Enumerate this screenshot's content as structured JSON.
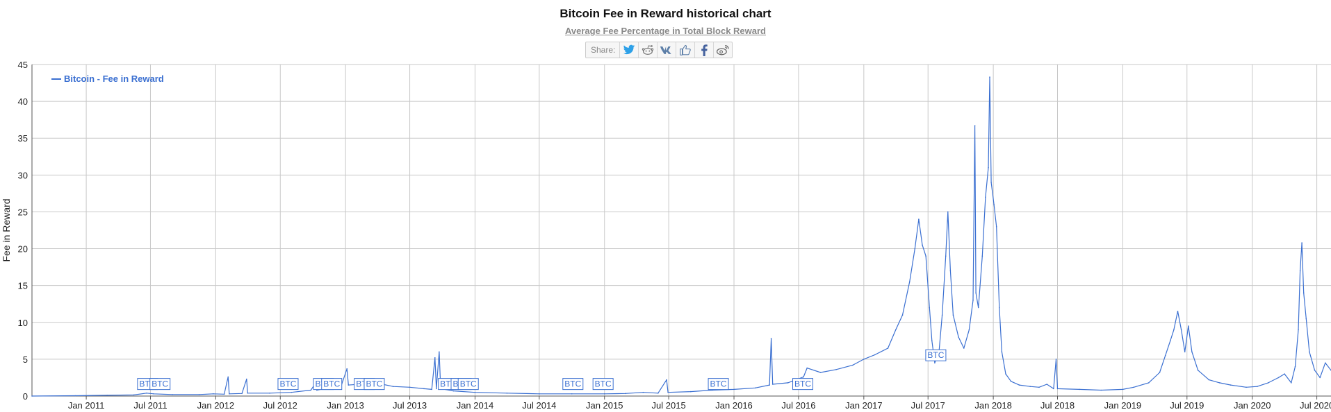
{
  "header": {
    "title": "Bitcoin Fee in Reward historical chart",
    "subtitle": "Average Fee Percentage in Total Block Reward",
    "share_label": "Share:",
    "share_icons": [
      "twitter-icon",
      "reddit-icon",
      "vk-icon",
      "like-icon",
      "facebook-icon",
      "weibo-icon"
    ]
  },
  "colors": {
    "series": "#3a6fd1",
    "grid": "#c8c8c8",
    "axis": "#555555"
  },
  "chart_data": {
    "type": "line",
    "title": "Bitcoin Fee in Reward historical chart",
    "subtitle": "Average Fee Percentage in Total Block Reward",
    "ylabel": "Fee in Reward",
    "xlabel": "",
    "ylim": [
      0,
      45
    ],
    "yticks": [
      0,
      5,
      10,
      15,
      20,
      25,
      30,
      35,
      40,
      45
    ],
    "xlim": [
      "2010-08-01",
      "2020-08-10"
    ],
    "xticks": [
      {
        "date": "2011-01-01",
        "label": "Jan 2011"
      },
      {
        "date": "2011-07-01",
        "label": "Jul 2011"
      },
      {
        "date": "2012-01-01",
        "label": "Jan 2012"
      },
      {
        "date": "2012-07-01",
        "label": "Jul 2012"
      },
      {
        "date": "2013-01-01",
        "label": "Jan 2013"
      },
      {
        "date": "2013-07-01",
        "label": "Jul 2013"
      },
      {
        "date": "2014-01-01",
        "label": "Jan 2014"
      },
      {
        "date": "2014-07-01",
        "label": "Jul 2014"
      },
      {
        "date": "2015-01-01",
        "label": "Jan 2015"
      },
      {
        "date": "2015-07-01",
        "label": "Jul 2015"
      },
      {
        "date": "2016-01-01",
        "label": "Jan 2016"
      },
      {
        "date": "2016-07-01",
        "label": "Jul 2016"
      },
      {
        "date": "2017-01-01",
        "label": "Jan 2017"
      },
      {
        "date": "2017-07-01",
        "label": "Jul 2017"
      },
      {
        "date": "2018-01-01",
        "label": "Jan 2018"
      },
      {
        "date": "2018-07-01",
        "label": "Jul 2018"
      },
      {
        "date": "2019-01-01",
        "label": "Jan 2019"
      },
      {
        "date": "2019-07-01",
        "label": "Jul 2019"
      },
      {
        "date": "2020-01-01",
        "label": "Jan 2020"
      },
      {
        "date": "2020-07-01",
        "label": "Jul 2020"
      }
    ],
    "grid": true,
    "legend_position": "top-left",
    "series": [
      {
        "name": "Bitcoin - Fee in Reward",
        "color": "#3a6fd1",
        "points": [
          [
            "2010-08-01",
            0.0
          ],
          [
            "2010-12-01",
            0.05
          ],
          [
            "2011-03-01",
            0.1
          ],
          [
            "2011-05-15",
            0.15
          ],
          [
            "2011-06-20",
            0.4
          ],
          [
            "2011-07-10",
            0.3
          ],
          [
            "2011-09-01",
            0.2
          ],
          [
            "2011-11-15",
            0.2
          ],
          [
            "2011-12-25",
            0.3
          ],
          [
            "2012-01-25",
            0.25
          ],
          [
            "2012-02-05",
            2.6
          ],
          [
            "2012-02-08",
            0.3
          ],
          [
            "2012-03-15",
            0.35
          ],
          [
            "2012-03-28",
            2.3
          ],
          [
            "2012-03-31",
            0.4
          ],
          [
            "2012-06-01",
            0.4
          ],
          [
            "2012-08-01",
            0.5
          ],
          [
            "2012-09-25",
            0.8
          ],
          [
            "2012-10-08",
            1.7
          ],
          [
            "2012-10-12",
            0.8
          ],
          [
            "2012-11-15",
            1.1
          ],
          [
            "2012-12-20",
            1.4
          ],
          [
            "2013-01-05",
            3.7
          ],
          [
            "2013-01-09",
            1.5
          ],
          [
            "2013-02-10",
            1.6
          ],
          [
            "2013-03-10",
            1.7
          ],
          [
            "2013-04-15",
            1.6
          ],
          [
            "2013-05-15",
            1.3
          ],
          [
            "2013-07-01",
            1.2
          ],
          [
            "2013-08-10",
            1.0
          ],
          [
            "2013-09-01",
            0.9
          ],
          [
            "2013-09-10",
            5.2
          ],
          [
            "2013-09-14",
            1.0
          ],
          [
            "2013-09-22",
            6.0
          ],
          [
            "2013-09-26",
            1.0
          ],
          [
            "2013-11-01",
            0.7
          ],
          [
            "2014-01-01",
            0.5
          ],
          [
            "2014-04-01",
            0.4
          ],
          [
            "2014-07-01",
            0.3
          ],
          [
            "2014-10-01",
            0.3
          ],
          [
            "2015-01-01",
            0.3
          ],
          [
            "2015-03-01",
            0.35
          ],
          [
            "2015-04-20",
            0.5
          ],
          [
            "2015-06-01",
            0.4
          ],
          [
            "2015-06-25",
            2.2
          ],
          [
            "2015-06-29",
            0.5
          ],
          [
            "2015-09-01",
            0.6
          ],
          [
            "2015-11-01",
            0.8
          ],
          [
            "2016-01-01",
            0.9
          ],
          [
            "2016-03-01",
            1.1
          ],
          [
            "2016-04-10",
            1.5
          ],
          [
            "2016-04-15",
            7.8
          ],
          [
            "2016-04-19",
            1.6
          ],
          [
            "2016-06-01",
            1.8
          ],
          [
            "2016-07-15",
            2.6
          ],
          [
            "2016-07-25",
            3.8
          ],
          [
            "2016-09-01",
            3.2
          ],
          [
            "2016-10-15",
            3.6
          ],
          [
            "2016-12-01",
            4.2
          ],
          [
            "2017-01-01",
            5.0
          ],
          [
            "2017-02-01",
            5.6
          ],
          [
            "2017-03-10",
            6.5
          ],
          [
            "2017-04-01",
            9.0
          ],
          [
            "2017-04-20",
            11.0
          ],
          [
            "2017-05-10",
            15.5
          ],
          [
            "2017-05-25",
            20.0
          ],
          [
            "2017-06-05",
            24.0
          ],
          [
            "2017-06-15",
            20.5
          ],
          [
            "2017-06-25",
            19.0
          ],
          [
            "2017-07-05",
            12.0
          ],
          [
            "2017-07-12",
            7.5
          ],
          [
            "2017-07-20",
            4.5
          ],
          [
            "2017-08-01",
            6.0
          ],
          [
            "2017-08-10",
            11.0
          ],
          [
            "2017-08-20",
            19.0
          ],
          [
            "2017-08-26",
            25.0
          ],
          [
            "2017-09-02",
            17.0
          ],
          [
            "2017-09-10",
            11.0
          ],
          [
            "2017-09-25",
            8.0
          ],
          [
            "2017-10-10",
            6.5
          ],
          [
            "2017-10-25",
            9.0
          ],
          [
            "2017-11-05",
            13.0
          ],
          [
            "2017-11-10",
            36.7
          ],
          [
            "2017-11-13",
            14.0
          ],
          [
            "2017-11-20",
            12.0
          ],
          [
            "2017-12-01",
            19.0
          ],
          [
            "2017-12-10",
            27.0
          ],
          [
            "2017-12-18",
            31.0
          ],
          [
            "2017-12-22",
            43.3
          ],
          [
            "2017-12-26",
            29.0
          ],
          [
            "2018-01-03",
            26.0
          ],
          [
            "2018-01-10",
            23.0
          ],
          [
            "2018-01-18",
            12.0
          ],
          [
            "2018-01-25",
            6.0
          ],
          [
            "2018-02-05",
            3.0
          ],
          [
            "2018-02-20",
            2.0
          ],
          [
            "2018-03-15",
            1.5
          ],
          [
            "2018-04-15",
            1.3
          ],
          [
            "2018-05-10",
            1.2
          ],
          [
            "2018-06-01",
            1.6
          ],
          [
            "2018-06-20",
            1.0
          ],
          [
            "2018-06-27",
            5.0
          ],
          [
            "2018-07-01",
            1.0
          ],
          [
            "2018-09-01",
            0.9
          ],
          [
            "2018-11-01",
            0.8
          ],
          [
            "2019-01-01",
            0.9
          ],
          [
            "2019-02-01",
            1.2
          ],
          [
            "2019-03-15",
            1.8
          ],
          [
            "2019-04-15",
            3.2
          ],
          [
            "2019-05-01",
            5.5
          ],
          [
            "2019-05-15",
            7.5
          ],
          [
            "2019-05-25",
            9.0
          ],
          [
            "2019-06-05",
            11.5
          ],
          [
            "2019-06-15",
            9.0
          ],
          [
            "2019-06-25",
            6.0
          ],
          [
            "2019-07-05",
            9.5
          ],
          [
            "2019-07-15",
            6.0
          ],
          [
            "2019-08-01",
            3.5
          ],
          [
            "2019-09-01",
            2.2
          ],
          [
            "2019-10-01",
            1.8
          ],
          [
            "2019-11-01",
            1.5
          ],
          [
            "2019-12-15",
            1.2
          ],
          [
            "2020-01-15",
            1.3
          ],
          [
            "2020-02-15",
            1.8
          ],
          [
            "2020-03-15",
            2.5
          ],
          [
            "2020-04-01",
            3.0
          ],
          [
            "2020-04-20",
            1.8
          ],
          [
            "2020-05-01",
            4.0
          ],
          [
            "2020-05-10",
            9.0
          ],
          [
            "2020-05-15",
            17.0
          ],
          [
            "2020-05-20",
            20.8
          ],
          [
            "2020-05-25",
            14.0
          ],
          [
            "2020-06-01",
            10.5
          ],
          [
            "2020-06-10",
            6.0
          ],
          [
            "2020-06-25",
            3.5
          ],
          [
            "2020-07-10",
            2.5
          ],
          [
            "2020-07-25",
            4.5
          ],
          [
            "2020-08-10",
            3.5
          ]
        ]
      }
    ],
    "annotations": [
      {
        "date": "2011-06-20",
        "label": "BTC"
      },
      {
        "date": "2011-07-25",
        "label": "BTC"
      },
      {
        "date": "2012-07-20",
        "label": "BTC"
      },
      {
        "date": "2012-10-28",
        "label": "BTC"
      },
      {
        "date": "2012-11-20",
        "label": "BTC"
      },
      {
        "date": "2013-02-20",
        "label": "BTC"
      },
      {
        "date": "2013-03-20",
        "label": "BTC"
      },
      {
        "date": "2013-10-15",
        "label": "BTC"
      },
      {
        "date": "2013-11-20",
        "label": "BTC"
      },
      {
        "date": "2013-12-10",
        "label": "BTC"
      },
      {
        "date": "2014-10-01",
        "label": "BTC"
      },
      {
        "date": "2014-12-25",
        "label": "BTC"
      },
      {
        "date": "2015-11-15",
        "label": "BTC"
      },
      {
        "date": "2016-07-10",
        "label": "BTC"
      },
      {
        "date": "2017-07-20",
        "label": "BTC",
        "value": 4.5
      }
    ]
  }
}
